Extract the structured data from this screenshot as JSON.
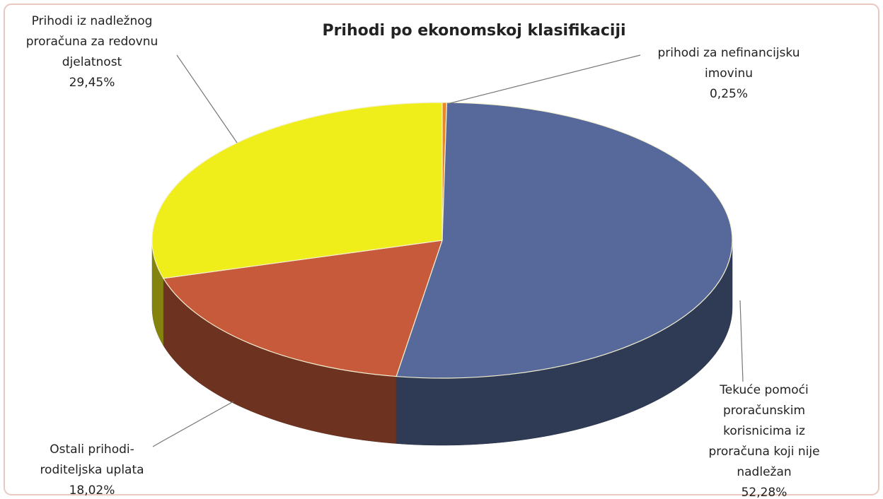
{
  "chart_data": {
    "type": "pie",
    "title": "Prihodi po ekonomskoj klasifikaciji",
    "categories": [
      [
        "prihodi za nefinancijsku",
        "imovinu"
      ],
      [
        "Tekuće pomoći",
        "proračunskim",
        "korisnicima iz",
        "proračuna koji nije",
        "nadležan"
      ],
      [
        "Ostali prihodi-",
        "roditeljska uplata"
      ],
      [
        "Prihodi iz nadležnog",
        "proračuna za redovnu",
        "djelatnost"
      ]
    ],
    "values": [
      0.25,
      52.28,
      18.02,
      29.45
    ],
    "value_labels": [
      "0,25%",
      "52,28%",
      "18,02%",
      "29,45%"
    ],
    "colors": [
      "#e8862a",
      "#56699a",
      "#c85a3c",
      "#f0ee1a"
    ]
  }
}
